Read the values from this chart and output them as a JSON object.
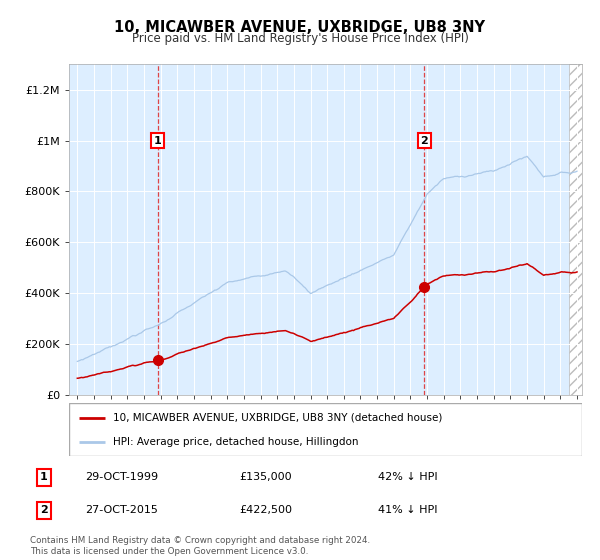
{
  "title": "10, MICAWBER AVENUE, UXBRIDGE, UB8 3NY",
  "subtitle": "Price paid vs. HM Land Registry's House Price Index (HPI)",
  "ylim": [
    0,
    1300000
  ],
  "yticks": [
    0,
    200000,
    400000,
    600000,
    800000,
    1000000,
    1200000
  ],
  "ytick_labels": [
    "£0",
    "£200K",
    "£400K",
    "£600K",
    "£800K",
    "£1M",
    "£1.2M"
  ],
  "background_color": "#ffffff",
  "plot_bg_color": "#ddeeff",
  "grid_color": "#ffffff",
  "hpi_color": "#aac8e8",
  "price_color": "#cc0000",
  "sale1_date": "29-OCT-1999",
  "sale1_price": 135000,
  "sale1_label": "1",
  "sale1_hpi_pct": "42% ↓ HPI",
  "sale2_date": "27-OCT-2015",
  "sale2_price": 422500,
  "sale2_label": "2",
  "sale2_hpi_pct": "41% ↓ HPI",
  "legend_line1": "10, MICAWBER AVENUE, UXBRIDGE, UB8 3NY (detached house)",
  "legend_line2": "HPI: Average price, detached house, Hillingdon",
  "footnote": "Contains HM Land Registry data © Crown copyright and database right 2024.\nThis data is licensed under the Open Government Licence v3.0.",
  "x_start_year": 1995,
  "x_end_year": 2025,
  "sale1_x": 1999.83,
  "sale2_x": 2015.83
}
